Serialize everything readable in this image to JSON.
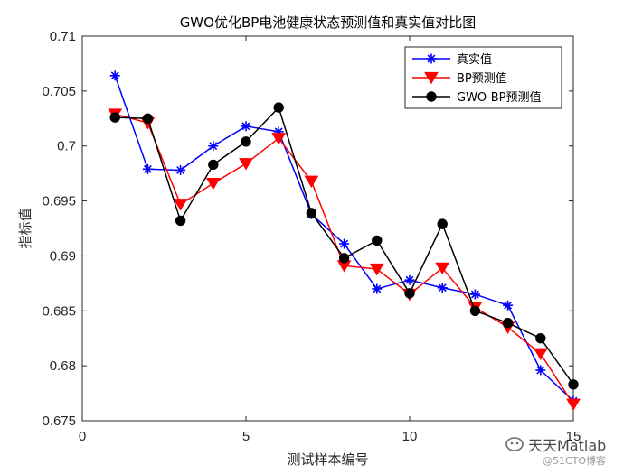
{
  "chart_data": {
    "type": "line",
    "title": "GWO优化BP电池健康状态预测值和真实值对比图",
    "xlabel": "测试样本编号",
    "ylabel": "指标值",
    "xlim": [
      0,
      15
    ],
    "ylim": [
      0.675,
      0.71
    ],
    "xticks": [
      0,
      5,
      10,
      15
    ],
    "yticks": [
      0.675,
      0.68,
      0.685,
      0.69,
      0.695,
      0.7,
      0.705,
      0.71
    ],
    "ytick_labels": [
      "0.675",
      "0.68",
      "0.685",
      "0.69",
      "0.695",
      "0.7",
      "0.705",
      "0.71"
    ],
    "x": [
      1,
      2,
      3,
      4,
      5,
      6,
      7,
      8,
      9,
      10,
      11,
      12,
      13,
      14,
      15
    ],
    "grid": false,
    "legend_position": "top-right",
    "series": [
      {
        "name": "真实值",
        "color": "#0000ff",
        "marker": "asterisk",
        "values": [
          0.7064,
          0.6979,
          0.6978,
          0.7,
          0.7018,
          0.7013,
          0.6938,
          0.6911,
          0.687,
          0.6878,
          0.6871,
          0.6865,
          0.6855,
          0.6796,
          0.6768
        ]
      },
      {
        "name": "BP预测值",
        "color": "#ff0000",
        "marker": "triangle-down",
        "values": [
          0.7029,
          0.7021,
          0.6947,
          0.6966,
          0.6984,
          0.7007,
          0.6968,
          0.6891,
          0.6888,
          0.6865,
          0.6889,
          0.6853,
          0.6835,
          0.6811,
          0.6765
        ]
      },
      {
        "name": "GWO-BP预测值",
        "color": "#000000",
        "marker": "circle",
        "values": [
          0.7026,
          0.7025,
          0.6932,
          0.6983,
          0.7004,
          0.7035,
          0.6939,
          0.6898,
          0.6914,
          0.6866,
          0.6929,
          0.685,
          0.6839,
          0.6825,
          0.6783
        ]
      }
    ]
  },
  "watermark": {
    "line1": "天天Matlab",
    "line2": "@51CTO博客"
  }
}
